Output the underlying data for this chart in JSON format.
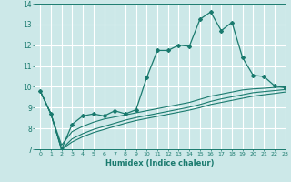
{
  "title": "",
  "xlabel": "Humidex (Indice chaleur)",
  "background_color": "#cce8e8",
  "grid_color": "#ffffff",
  "line_color": "#1a7a6e",
  "xlim": [
    -0.5,
    23
  ],
  "ylim": [
    7,
    14
  ],
  "yticks": [
    7,
    8,
    9,
    10,
    11,
    12,
    13,
    14
  ],
  "xticks": [
    0,
    1,
    2,
    3,
    4,
    5,
    6,
    7,
    8,
    9,
    10,
    11,
    12,
    13,
    14,
    15,
    16,
    17,
    18,
    19,
    20,
    21,
    22,
    23
  ],
  "series1_x": [
    0,
    1,
    2,
    3,
    4,
    5,
    6,
    7,
    8,
    9,
    10,
    11,
    12,
    13,
    14,
    15,
    16,
    17,
    18,
    19,
    20,
    21,
    22,
    23
  ],
  "series1_y": [
    9.8,
    8.7,
    7.0,
    8.2,
    8.6,
    8.7,
    8.6,
    8.85,
    8.7,
    8.9,
    10.45,
    11.75,
    11.75,
    12.0,
    11.95,
    13.25,
    13.6,
    12.7,
    13.1,
    11.4,
    10.55,
    10.5,
    10.05,
    9.95
  ],
  "series2_x": [
    0,
    1,
    2,
    3,
    4,
    5,
    6,
    7,
    8,
    9,
    10,
    11,
    12,
    13,
    14,
    15,
    16,
    17,
    18,
    19,
    20,
    21,
    22,
    23
  ],
  "series2_y": [
    9.8,
    8.7,
    7.2,
    7.85,
    8.1,
    8.3,
    8.45,
    8.55,
    8.65,
    8.75,
    8.85,
    8.95,
    9.05,
    9.15,
    9.25,
    9.4,
    9.55,
    9.65,
    9.75,
    9.85,
    9.9,
    9.93,
    9.97,
    10.0
  ],
  "series3_x": [
    0,
    1,
    2,
    3,
    4,
    5,
    6,
    7,
    8,
    9,
    10,
    11,
    12,
    13,
    14,
    15,
    16,
    17,
    18,
    19,
    20,
    21,
    22,
    23
  ],
  "series3_y": [
    9.8,
    8.7,
    7.0,
    7.5,
    7.75,
    7.95,
    8.1,
    8.25,
    8.4,
    8.52,
    8.62,
    8.72,
    8.82,
    8.92,
    9.02,
    9.15,
    9.3,
    9.42,
    9.52,
    9.62,
    9.72,
    9.77,
    9.82,
    9.87
  ],
  "series4_x": [
    0,
    1,
    2,
    3,
    4,
    5,
    6,
    7,
    8,
    9,
    10,
    11,
    12,
    13,
    14,
    15,
    16,
    17,
    18,
    19,
    20,
    21,
    22,
    23
  ],
  "series4_y": [
    9.8,
    8.7,
    7.0,
    7.35,
    7.6,
    7.8,
    7.95,
    8.1,
    8.25,
    8.38,
    8.48,
    8.58,
    8.68,
    8.78,
    8.88,
    9.0,
    9.15,
    9.25,
    9.35,
    9.45,
    9.55,
    9.62,
    9.68,
    9.75
  ]
}
